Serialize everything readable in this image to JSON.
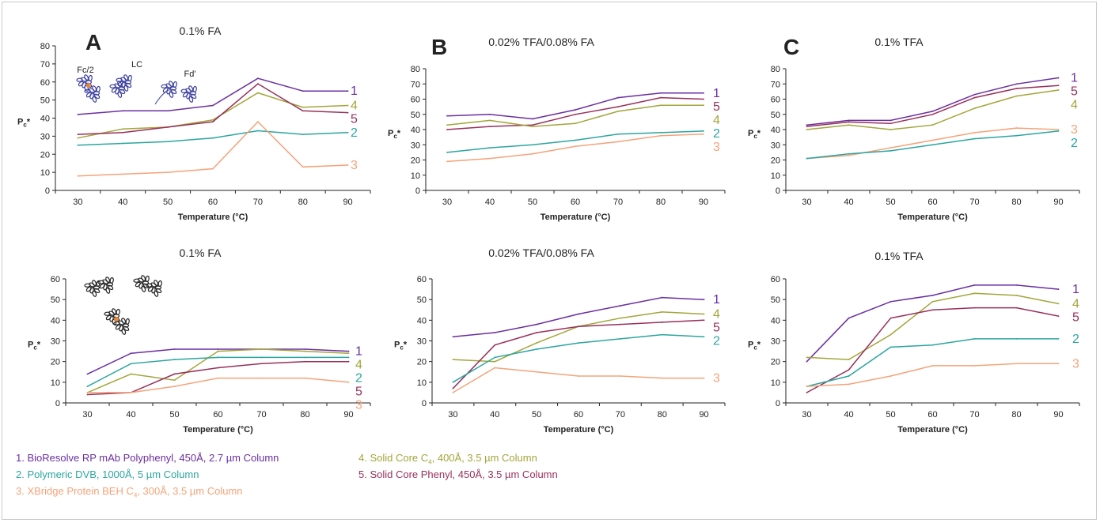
{
  "colors": {
    "s1": "#6a2ea0",
    "s2": "#2ba5a0",
    "s3": "#f4a37a",
    "s4": "#a3a53a",
    "s5": "#98305a"
  },
  "legend": [
    {
      "num": "1.",
      "text": "BioResolve RP mAb Polyphenyl, 450Å, 2.7 µm Column",
      "key": "s1"
    },
    {
      "num": "2.",
      "text": "Polymeric DVB, 1000Å, 5 µm Column",
      "key": "s2"
    },
    {
      "num": "3.",
      "text": "XBridge Protein BEH C",
      "sub": "4",
      "tail": ", 300Å, 3.5 µm Column",
      "key": "s3"
    },
    {
      "num": "4.",
      "text": "Solid Core C",
      "sub": "4",
      "tail": ", 400Å, 3.5 µm Column",
      "key": "s4"
    },
    {
      "num": "5.",
      "text": "Solid Core Phenyl, 450Å, 3.5 µm Column",
      "key": "s5"
    }
  ],
  "panel_letters": [
    "A",
    "B",
    "C"
  ],
  "fragment_labels": [
    "Fc/2",
    "LC",
    "Fd'"
  ],
  "chart_data": [
    {
      "type": "line",
      "title": "0.1% FA",
      "xlabel": "Temperature (°C)",
      "ylabel": "Pc*",
      "x": [
        30,
        40,
        50,
        60,
        70,
        80,
        90
      ],
      "ylim": [
        0,
        80
      ],
      "yticks": [
        0,
        10,
        20,
        30,
        40,
        50,
        60,
        70,
        80
      ],
      "series": [
        {
          "name": "1",
          "key": "s1",
          "values": [
            42,
            44,
            44,
            47,
            62,
            55,
            55
          ]
        },
        {
          "name": "4",
          "key": "s4",
          "values": [
            29,
            34,
            35,
            39,
            54,
            46,
            47
          ]
        },
        {
          "name": "5",
          "key": "s5",
          "values": [
            31,
            32,
            35,
            38,
            59,
            44,
            43
          ]
        },
        {
          "name": "2",
          "key": "s2",
          "values": [
            25,
            26,
            27,
            29,
            33,
            31,
            32
          ]
        },
        {
          "name": "3",
          "key": "s3",
          "values": [
            8,
            9,
            10,
            12,
            38,
            13,
            14
          ]
        }
      ]
    },
    {
      "type": "line",
      "title": "0.02% TFA/0.08% FA",
      "xlabel": "Temperature (°C)",
      "ylabel": "Pc*",
      "x": [
        30,
        40,
        50,
        60,
        70,
        80,
        90
      ],
      "ylim": [
        0,
        80
      ],
      "yticks": [
        0,
        10,
        20,
        30,
        40,
        50,
        60,
        70,
        80
      ],
      "series": [
        {
          "name": "1",
          "key": "s1",
          "values": [
            49,
            50,
            47,
            53,
            61,
            64,
            64
          ]
        },
        {
          "name": "5",
          "key": "s5",
          "values": [
            40,
            42,
            43,
            50,
            55,
            61,
            60
          ]
        },
        {
          "name": "4",
          "key": "s4",
          "values": [
            43,
            46,
            42,
            44,
            52,
            56,
            56
          ]
        },
        {
          "name": "2",
          "key": "s2",
          "values": [
            25,
            28,
            30,
            33,
            37,
            38,
            39
          ]
        },
        {
          "name": "3",
          "key": "s3",
          "values": [
            19,
            21,
            24,
            29,
            32,
            36,
            37
          ]
        }
      ]
    },
    {
      "type": "line",
      "title": "0.1% TFA",
      "xlabel": "Temperature (°C)",
      "ylabel": "Pc*",
      "x": [
        30,
        40,
        50,
        60,
        70,
        80,
        90
      ],
      "ylim": [
        0,
        80
      ],
      "yticks": [
        0,
        10,
        20,
        30,
        40,
        50,
        60,
        70,
        80
      ],
      "series": [
        {
          "name": "1",
          "key": "s1",
          "values": [
            43,
            46,
            46,
            52,
            63,
            70,
            74
          ]
        },
        {
          "name": "5",
          "key": "s5",
          "values": [
            42,
            45,
            44,
            50,
            61,
            67,
            69
          ]
        },
        {
          "name": "4",
          "key": "s4",
          "values": [
            40,
            43,
            40,
            43,
            54,
            62,
            66
          ]
        },
        {
          "name": "3",
          "key": "s3",
          "values": [
            21,
            23,
            28,
            33,
            38,
            41,
            40
          ]
        },
        {
          "name": "2",
          "key": "s2",
          "values": [
            21,
            24,
            26,
            30,
            34,
            36,
            39
          ]
        }
      ]
    },
    {
      "type": "line",
      "title": "0.1% FA",
      "xlabel": "Temperature (°C)",
      "ylabel": "Pc*",
      "x": [
        30,
        40,
        50,
        60,
        70,
        80,
        90
      ],
      "ylim": [
        0,
        60
      ],
      "yticks": [
        0,
        10,
        20,
        30,
        40,
        50,
        60
      ],
      "series": [
        {
          "name": "1",
          "key": "s1",
          "values": [
            14,
            24,
            26,
            26,
            26,
            26,
            25
          ]
        },
        {
          "name": "4",
          "key": "s4",
          "values": [
            5,
            14,
            11,
            25,
            26,
            25,
            24
          ]
        },
        {
          "name": "2",
          "key": "s2",
          "values": [
            8,
            19,
            21,
            22,
            22,
            22,
            22
          ]
        },
        {
          "name": "5",
          "key": "s5",
          "values": [
            4,
            5,
            14,
            17,
            19,
            20,
            20
          ]
        },
        {
          "name": "3",
          "key": "s3",
          "values": [
            5,
            5,
            8,
            12,
            12,
            12,
            10
          ]
        }
      ]
    },
    {
      "type": "line",
      "title": "0.02% TFA/0.08% FA",
      "xlabel": "Temperature (°C)",
      "ylabel": "Pc*",
      "x": [
        30,
        40,
        50,
        60,
        70,
        80,
        90
      ],
      "ylim": [
        0,
        60
      ],
      "yticks": [
        0,
        10,
        20,
        30,
        40,
        50,
        60
      ],
      "series": [
        {
          "name": "1",
          "key": "s1",
          "values": [
            32,
            34,
            38,
            43,
            47,
            51,
            50
          ]
        },
        {
          "name": "4",
          "key": "s4",
          "values": [
            21,
            20,
            29,
            37,
            41,
            44,
            43
          ]
        },
        {
          "name": "5",
          "key": "s5",
          "values": [
            7,
            28,
            34,
            37,
            38,
            39,
            40
          ]
        },
        {
          "name": "2",
          "key": "s2",
          "values": [
            10,
            22,
            26,
            29,
            31,
            33,
            32
          ]
        },
        {
          "name": "3",
          "key": "s3",
          "values": [
            5,
            17,
            15,
            13,
            13,
            12,
            12
          ]
        }
      ]
    },
    {
      "type": "line",
      "title": "0.1% TFA",
      "xlabel": "Temperature (°C)",
      "ylabel": "Pc*",
      "x": [
        30,
        40,
        50,
        60,
        70,
        80,
        90
      ],
      "ylim": [
        0,
        60
      ],
      "yticks": [
        0,
        10,
        20,
        30,
        40,
        50,
        60
      ],
      "series": [
        {
          "name": "1",
          "key": "s1",
          "values": [
            20,
            41,
            49,
            52,
            57,
            57,
            55
          ]
        },
        {
          "name": "4",
          "key": "s4",
          "values": [
            22,
            21,
            33,
            49,
            53,
            52,
            48
          ]
        },
        {
          "name": "5",
          "key": "s5",
          "values": [
            5,
            16,
            41,
            45,
            46,
            46,
            42
          ]
        },
        {
          "name": "2",
          "key": "s2",
          "values": [
            8,
            13,
            27,
            28,
            31,
            31,
            31
          ]
        },
        {
          "name": "3",
          "key": "s3",
          "values": [
            8,
            9,
            13,
            18,
            18,
            19,
            19
          ]
        }
      ]
    }
  ]
}
